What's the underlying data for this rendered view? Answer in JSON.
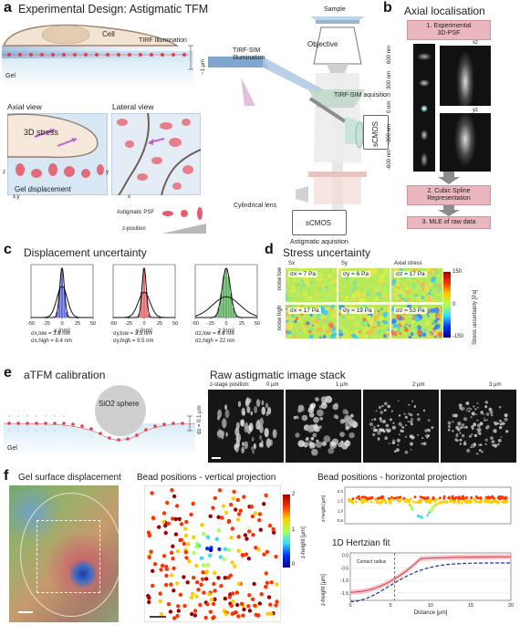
{
  "panel_labels": {
    "a": "a",
    "b": "b",
    "c": "c",
    "d": "d",
    "e": "e",
    "f": "f"
  },
  "a": {
    "title": "Experimental Design: Astigmatic TFM",
    "cell": "Cell",
    "tirf": "TIRF Illumination",
    "gel": "Gel",
    "um": "~1 µm",
    "axial_view": "Axial view",
    "lateral_view": "Lateral view",
    "stress_3d": "3D stress",
    "gel_displacement": "Gel displacement",
    "ax_z": "z",
    "ax_xy": "x,y",
    "ax_y": "y",
    "ax_x": "x",
    "astig_psf": "Astigmatic PSF",
    "z_position": "z-position",
    "sample": "Sample",
    "objective": "Objective",
    "tirf_sim_illum": "TIRF-SIM\nIllumination",
    "tirf_sim_acq": "TIRF-SIM aquisition",
    "scmos1": "sCMOS",
    "scmos2": "sCMOS",
    "cyl_lens": "Cylindrical lens",
    "astig_acq": "Astigmatic aquisition"
  },
  "b": {
    "title": "Axial localisation",
    "box1": "1. Experimental\n3D-PSF",
    "box2": "2. Cubic Spline\nRepresentation",
    "box3": "3. MLE of raw data",
    "z_labels": [
      "600 nm",
      "300 nm",
      "0 nm",
      "-300 nm",
      "-600 nm"
    ],
    "xz": "xz",
    "yz": "yz"
  },
  "c": {
    "title": "Displacement uncertainty",
    "plots": [
      {
        "xlabel": "x [nm]",
        "color": "#3b46c8",
        "fill": "#4b57d6",
        "s1": "σx,low = 3.8 nm",
        "s2": "σx,high = 8.4 nm",
        "low": 3.8,
        "high": 8.4
      },
      {
        "xlabel": "y [nm]",
        "color": "#d0404a",
        "fill": "#e0555d",
        "s1": "σy,low = 3.5 nm",
        "s2": "σy,high = 9.5 nm",
        "low": 3.5,
        "high": 9.5
      },
      {
        "xlabel": "z [nm]",
        "color": "#2e8b3a",
        "fill": "#4aa64f",
        "s1": "σz,low = 6.6 nm",
        "s2": "σz,high = 22 nm",
        "low": 6.6,
        "high": 22
      }
    ],
    "xticks": [
      "-50",
      "-25",
      "0",
      "25",
      "50"
    ],
    "xlim": [
      -50,
      50
    ]
  },
  "d": {
    "title": "Stress uncertainty",
    "col_sx": "Sx",
    "col_sy": "Sy",
    "col_axial": "Axial stress",
    "row_low": "noise low",
    "row_high": "noise high",
    "vals": [
      [
        "σx = 7 Pa",
        "σy = 6 Pa",
        "σz = 17 Pa"
      ],
      [
        "σx = 17 Pa",
        "σy = 19 Pa",
        "σz = 53 Pa"
      ]
    ],
    "cbar_max": "150",
    "cbar_mid": "0",
    "cbar_min": "-150",
    "cbar_label": "Stress uncertainty [Pa]"
  },
  "e": {
    "title": "aTFM calibration",
    "sphere": "SiO2 sphere",
    "dz": "dz = 0.1 µm",
    "gel": "Gel",
    "stack_title": "Raw astigmatic image stack",
    "zstage": "z-stage position:",
    "positions": [
      "0 µm",
      "1 µm",
      "2 µm",
      "3 µm"
    ]
  },
  "f": {
    "t1": "Gel surface displacement",
    "t2": "Bead positions - vertical projection",
    "t3": "Bead positions - horizontal projection",
    "t4": "1D Hertzian fit",
    "zheight": "z-height [µm]",
    "cbar_ticks": [
      "2",
      "1",
      "0"
    ],
    "hp_yticks": [
      "2.0",
      "1.5",
      "1.0",
      "0.5"
    ],
    "fit_ylabel": "z-height [µm]",
    "fit_xlabel": "Distance [µm]",
    "fit_xticks": [
      "0",
      "5",
      "10",
      "15",
      "20"
    ],
    "fit_yticks": [
      "0.0",
      "-0.5",
      "-1.0",
      "-1.5"
    ],
    "contact_radius": "Contact radius"
  }
}
